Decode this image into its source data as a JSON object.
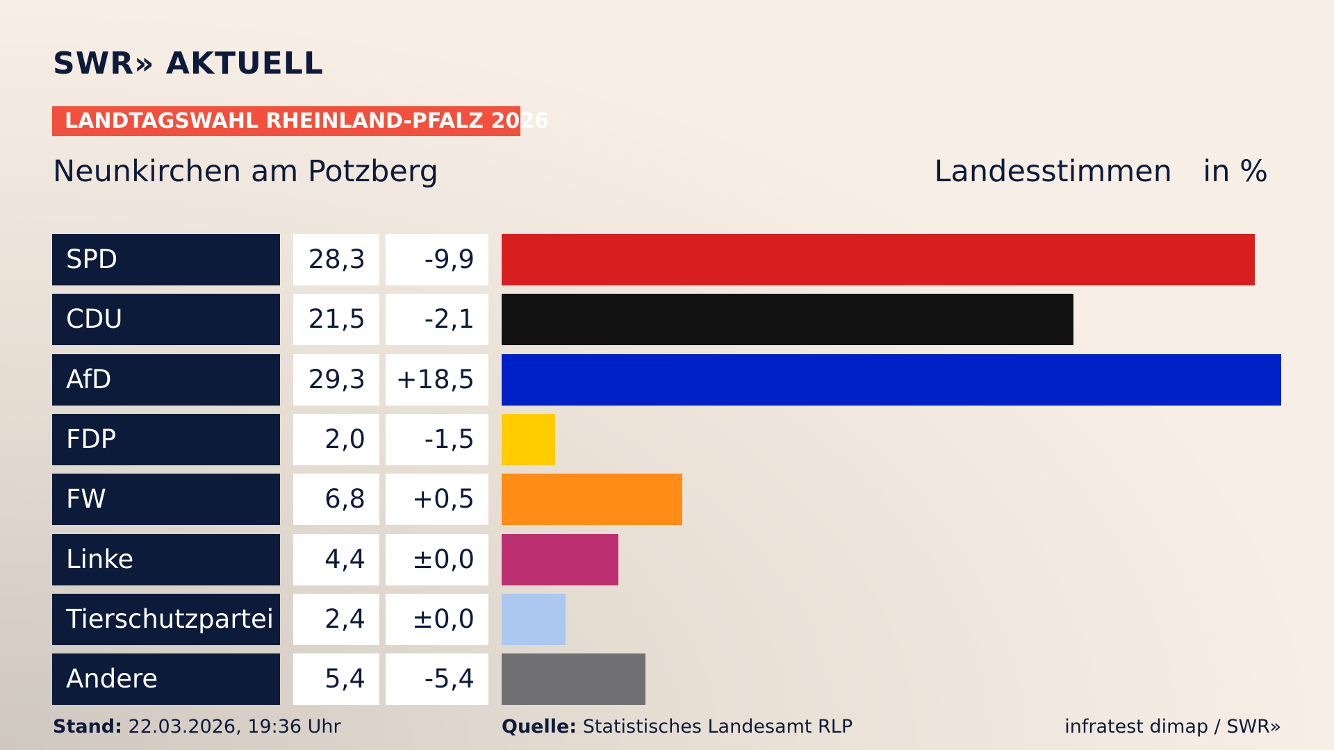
{
  "logo": "SWR» AKTUELL",
  "footer": {
    "stand_label": "Stand:",
    "stand_value": "22.03.2026, 19:36 Uhr",
    "source_label": "Quelle:",
    "source_value": "Statistisches Landesamt RLP",
    "credit": "infratest dimap / SWR»"
  },
  "chart_data": {
    "type": "bar",
    "orientation": "horizontal",
    "kicker": "LANDTAGSWAHL RHEINLAND-PFALZ 2026",
    "title": "Neunkirchen am Potzberg",
    "measure": "Landesstimmen",
    "unit": "in %",
    "categories": [
      "SPD",
      "CDU",
      "AfD",
      "FDP",
      "FW",
      "Linke",
      "Tierschutzpartei",
      "Andere"
    ],
    "values": [
      28.3,
      21.5,
      29.3,
      2.0,
      6.8,
      4.4,
      2.4,
      5.4
    ],
    "value_labels": [
      "28,3",
      "21,5",
      "29,3",
      "2,0",
      "6,8",
      "4,4",
      "2,4",
      "5,4"
    ],
    "changes": [
      -9.9,
      -2.1,
      18.5,
      -1.5,
      0.5,
      0.0,
      0.0,
      -5.4
    ],
    "change_labels": [
      "-9,9",
      "-2,1",
      "+18,5",
      "-1,5",
      "+0,5",
      "±0,0",
      "±0,0",
      "-5,4"
    ],
    "colors": [
      "#d81f1f",
      "#121212",
      "#0020c8",
      "#ffcc00",
      "#ff8c16",
      "#bc3071",
      "#aac8f0",
      "#707073"
    ]
  }
}
